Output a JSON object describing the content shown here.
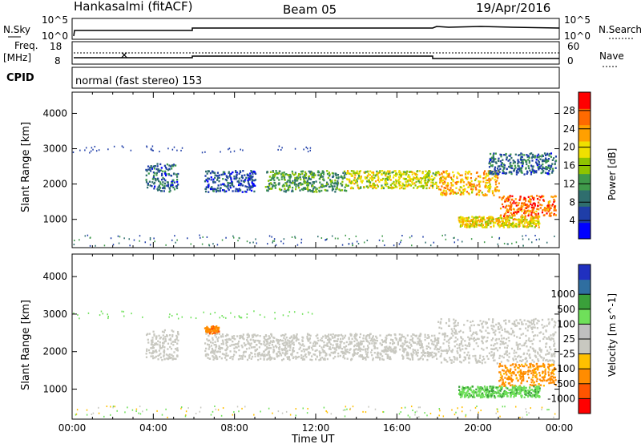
{
  "header": {
    "station": "Hankasalmi (fitACF)",
    "beam": "Beam 05",
    "date": "19/Apr/2016"
  },
  "summary_panel": {
    "nsky_label": "N.Sky",
    "nsky_ticks": [
      "10^5",
      "10^0"
    ],
    "nsearch_label": "N.Search",
    "nsearch_ticks": [
      "10^5",
      "10^0"
    ],
    "freq_label": "Freq.",
    "freq_unit": "[MHz]",
    "freq_ticks": [
      "18",
      "8"
    ],
    "nave_label": "Nave",
    "nave_ticks": [
      "60",
      "0"
    ],
    "cpid_label": "CPID",
    "cpid_value": "normal (fast stereo) 153"
  },
  "colors": {
    "power_scale": [
      "#0000ff",
      "#1f3ea8",
      "#2f6e6e",
      "#3f9a4a",
      "#8fc400",
      "#f0e000",
      "#ffa000",
      "#ff6a00",
      "#ff0000"
    ],
    "velocity_scale": [
      "#ff0000",
      "#ff5500",
      "#ff8c00",
      "#ffc000",
      "#c8c8c0",
      "#bfbfbf",
      "#6fe05a",
      "#3aa03a",
      "#2f6ea0",
      "#2030c0"
    ],
    "ground_scatter": "#c8c8c0"
  },
  "chart_data": [
    {
      "type": "heatmap",
      "panel": "power",
      "ylabel": "Slant Range [km]",
      "y_ticks": [
        "1000",
        "2000",
        "3000",
        "4000"
      ],
      "ylim": [
        200,
        4600
      ],
      "xlim": [
        0,
        24
      ],
      "colorbar_label": "Power [dB]",
      "colorbar_ticks": [
        "4",
        "8",
        "12",
        "16",
        "20",
        "24",
        "28"
      ],
      "colorbar_range": [
        0,
        32
      ],
      "features": [
        {
          "x_start": 3.6,
          "x_end": 5.2,
          "y_start": 1800,
          "y_end": 2600,
          "value": 8
        },
        {
          "x_start": 6.5,
          "x_end": 9.0,
          "y_start": 1800,
          "y_end": 2400,
          "value": 6
        },
        {
          "x_start": 9.5,
          "x_end": 13.5,
          "y_start": 1800,
          "y_end": 2400,
          "value": 12
        },
        {
          "x_start": 13.5,
          "x_end": 18.0,
          "y_start": 1900,
          "y_end": 2400,
          "value": 18
        },
        {
          "x_start": 18.0,
          "x_end": 21.0,
          "y_start": 1700,
          "y_end": 2400,
          "value": 22
        },
        {
          "x_start": 21.0,
          "x_end": 23.8,
          "y_start": 1100,
          "y_end": 1700,
          "value": 26
        },
        {
          "x_start": 19.0,
          "x_end": 23.0,
          "y_start": 800,
          "y_end": 1100,
          "value": 20
        },
        {
          "x_start": 20.5,
          "x_end": 23.8,
          "y_start": 2300,
          "y_end": 2900,
          "value": 8
        }
      ]
    },
    {
      "type": "heatmap",
      "panel": "velocity",
      "ylabel": "Slant Range [km]",
      "y_ticks": [
        "1000",
        "2000",
        "3000",
        "4000"
      ],
      "ylim": [
        200,
        4600
      ],
      "xlim": [
        0,
        24
      ],
      "xlabel": "Time UT",
      "x_ticks": [
        "00:00",
        "04:00",
        "08:00",
        "12:00",
        "16:00",
        "20:00",
        "00:00"
      ],
      "colorbar_label": "Velocity [m s^-1]",
      "colorbar_ticks": [
        "-1000",
        "-500",
        "-100",
        "-25",
        "25",
        "100",
        "500",
        "1000"
      ],
      "features": [
        {
          "x_start": 3.6,
          "x_end": 5.2,
          "y_start": 1800,
          "y_end": 2600,
          "value": 0
        },
        {
          "x_start": 6.5,
          "x_end": 7.2,
          "y_start": 2500,
          "y_end": 2700,
          "value": -400
        },
        {
          "x_start": 6.5,
          "x_end": 18.0,
          "y_start": 1800,
          "y_end": 2500,
          "value": 0
        },
        {
          "x_start": 18.0,
          "x_end": 23.8,
          "y_start": 1700,
          "y_end": 2900,
          "value": 0
        },
        {
          "x_start": 21.0,
          "x_end": 23.8,
          "y_start": 1100,
          "y_end": 1700,
          "value": -150
        },
        {
          "x_start": 19.0,
          "x_end": 23.0,
          "y_start": 800,
          "y_end": 1100,
          "value": 80
        }
      ]
    }
  ]
}
